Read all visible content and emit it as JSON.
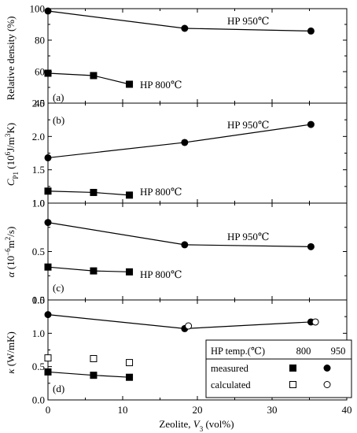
{
  "chart_data": [
    {
      "type": "line",
      "panel_label": "(a)",
      "ylabel_main": "Relative density (%)",
      "ylim": [
        40,
        100
      ],
      "yticks": [
        40,
        60,
        80,
        100
      ],
      "xlim": [
        0,
        40
      ],
      "series": [
        {
          "name": "HP 950℃",
          "marker": "circle-filled",
          "x": [
            0,
            18.3,
            35.2
          ],
          "y": [
            98.5,
            87.5,
            85.8
          ]
        },
        {
          "name": "HP 800℃",
          "marker": "square-filled",
          "x": [
            0,
            6.1,
            10.9
          ],
          "y": [
            59.0,
            57.5,
            52.0
          ]
        }
      ]
    },
    {
      "type": "line",
      "panel_label": "(b)",
      "ylabel_main": "C",
      "ylabel_sub": "P1",
      "ylabel_rest": " (10",
      "ylabel_sup": "6",
      "ylabel_end": "J/m",
      "ylabel_sup2": "3",
      "ylabel_tail": "K)",
      "ylim": [
        1.0,
        2.5
      ],
      "yticks": [
        "1.0",
        "1.5",
        "2.0",
        "2.5"
      ],
      "xlim": [
        0,
        40
      ],
      "series": [
        {
          "name": "HP 950℃",
          "marker": "circle-filled",
          "x": [
            0,
            18.3,
            35.2
          ],
          "y": [
            1.68,
            1.91,
            2.18
          ]
        },
        {
          "name": "HP 800℃",
          "marker": "square-filled",
          "x": [
            0,
            6.1,
            10.9
          ],
          "y": [
            1.18,
            1.16,
            1.12
          ]
        }
      ]
    },
    {
      "type": "line",
      "panel_label": "(c)",
      "ylabel_main": "α",
      "ylabel_rest": " (10",
      "ylabel_sup": "−6",
      "ylabel_end": "m",
      "ylabel_sup2": "2",
      "ylabel_tail": "/s)",
      "ylim": [
        0.0,
        1.0
      ],
      "yticks": [
        "0.0",
        "0.5",
        "1.0"
      ],
      "xlim": [
        0,
        40
      ],
      "series": [
        {
          "name": "HP 950℃",
          "marker": "circle-filled",
          "x": [
            0,
            18.3,
            35.2
          ],
          "y": [
            0.8,
            0.57,
            0.55
          ]
        },
        {
          "name": "HP 800℃",
          "marker": "square-filled",
          "x": [
            0,
            6.1,
            10.9
          ],
          "y": [
            0.34,
            0.3,
            0.29
          ]
        }
      ]
    },
    {
      "type": "line",
      "panel_label": "(d)",
      "ylabel_main": "κ",
      "ylabel_rest": " (W/mK)",
      "ylim": [
        0.0,
        1.5
      ],
      "yticks": [
        "0.0",
        "0.5",
        "1.0",
        "1.5"
      ],
      "xlim": [
        0,
        40
      ],
      "xticks": [
        "0",
        "10",
        "20",
        "30",
        "40"
      ],
      "xlabel_main": "Zeolite, ",
      "xlabel_var": "V",
      "xlabel_sub": "3",
      "xlabel_tail": " (vol%)",
      "series": [
        {
          "name": "measured 950",
          "marker": "circle-filled",
          "x": [
            0,
            18.3,
            35.2
          ],
          "y": [
            1.28,
            1.07,
            1.17
          ]
        },
        {
          "name": "measured 800",
          "marker": "square-filled",
          "x": [
            0,
            6.1,
            10.9
          ],
          "y": [
            0.42,
            0.37,
            0.34
          ]
        },
        {
          "name": "calculated 950",
          "marker": "circle-open",
          "line": false,
          "x": [
            18.8,
            35.8
          ],
          "y": [
            1.11,
            1.17
          ]
        },
        {
          "name": "calculated 800",
          "marker": "square-open",
          "line": false,
          "x": [
            0,
            6.1,
            10.9
          ],
          "y": [
            0.63,
            0.62,
            0.56
          ]
        }
      ],
      "legend": {
        "header": "HP temp.(℃)",
        "col1": "800",
        "col2": "950",
        "rows": [
          "measured",
          "calculated"
        ]
      }
    }
  ]
}
